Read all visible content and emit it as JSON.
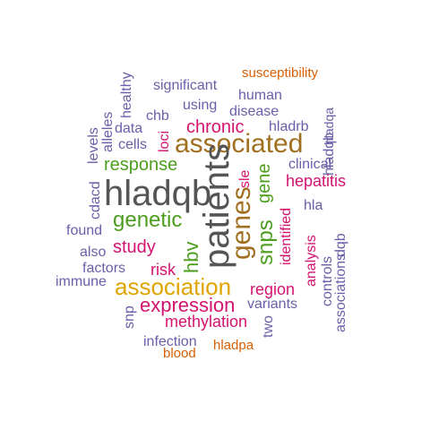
{
  "colors": {
    "purple": "#6a5fa8",
    "pink": "#d4136f",
    "green": "#4d9e1f",
    "gold": "#e0a400",
    "brown": "#a07020",
    "gray": "#555555",
    "orange": "#d95f02"
  },
  "words": [
    {
      "text": "susceptibility",
      "size": 15,
      "color": "orange",
      "vertical": false
    },
    {
      "text": "healthy",
      "size": 16,
      "color": "purple",
      "vertical": true
    },
    {
      "text": "significant",
      "size": 16,
      "color": "purple",
      "vertical": false
    },
    {
      "text": "human",
      "size": 16,
      "color": "purple",
      "vertical": false
    },
    {
      "text": "using",
      "size": 16,
      "color": "purple",
      "vertical": false
    },
    {
      "text": "disease",
      "size": 16,
      "color": "purple",
      "vertical": false
    },
    {
      "text": "alleles",
      "size": 16,
      "color": "purple",
      "vertical": true
    },
    {
      "text": "chb",
      "size": 16,
      "color": "purple",
      "vertical": false
    },
    {
      "text": "hladqa",
      "size": 14,
      "color": "purple",
      "vertical": true
    },
    {
      "text": "data",
      "size": 16,
      "color": "purple",
      "vertical": false
    },
    {
      "text": "chronic",
      "size": 20,
      "color": "pink",
      "vertical": false
    },
    {
      "text": "hladrb",
      "size": 16,
      "color": "purple",
      "vertical": false
    },
    {
      "text": "levels",
      "size": 16,
      "color": "purple",
      "vertical": true
    },
    {
      "text": "loci",
      "size": 16,
      "color": "pink",
      "vertical": true
    },
    {
      "text": "cells",
      "size": 16,
      "color": "purple",
      "vertical": false
    },
    {
      "text": "associated",
      "size": 30,
      "color": "brown",
      "vertical": false
    },
    {
      "text": "hladqb",
      "size": 16,
      "color": "purple",
      "vertical": true
    },
    {
      "text": "response",
      "size": 20,
      "color": "green",
      "vertical": false
    },
    {
      "text": "clinical",
      "size": 16,
      "color": "purple",
      "vertical": false
    },
    {
      "text": "sle",
      "size": 16,
      "color": "pink",
      "vertical": true
    },
    {
      "text": "gene",
      "size": 20,
      "color": "green",
      "vertical": true
    },
    {
      "text": "hepatitis",
      "size": 18,
      "color": "pink",
      "vertical": false
    },
    {
      "text": "hladqb",
      "size": 40,
      "color": "gray",
      "vertical": false
    },
    {
      "text": "patients",
      "size": 40,
      "color": "gray",
      "vertical": true
    },
    {
      "text": "cdacd",
      "size": 16,
      "color": "purple",
      "vertical": true
    },
    {
      "text": "genes",
      "size": 30,
      "color": "brown",
      "vertical": true
    },
    {
      "text": "snps",
      "size": 24,
      "color": "green",
      "vertical": true
    },
    {
      "text": "identified",
      "size": 16,
      "color": "pink",
      "vertical": true
    },
    {
      "text": "hla",
      "size": 16,
      "color": "purple",
      "vertical": false
    },
    {
      "text": "dqb",
      "size": 16,
      "color": "purple",
      "vertical": true
    },
    {
      "text": "genetic",
      "size": 24,
      "color": "green",
      "vertical": false
    },
    {
      "text": "found",
      "size": 16,
      "color": "purple",
      "vertical": false
    },
    {
      "text": "analysis",
      "size": 16,
      "color": "pink",
      "vertical": true
    },
    {
      "text": "hbv",
      "size": 22,
      "color": "green",
      "vertical": true
    },
    {
      "text": "study",
      "size": 20,
      "color": "pink",
      "vertical": false
    },
    {
      "text": "also",
      "size": 16,
      "color": "purple",
      "vertical": false
    },
    {
      "text": "controls",
      "size": 16,
      "color": "purple",
      "vertical": true
    },
    {
      "text": "factors",
      "size": 16,
      "color": "purple",
      "vertical": false
    },
    {
      "text": "risk",
      "size": 18,
      "color": "pink",
      "vertical": false
    },
    {
      "text": "associations",
      "size": 16,
      "color": "purple",
      "vertical": true
    },
    {
      "text": "immune",
      "size": 16,
      "color": "purple",
      "vertical": false
    },
    {
      "text": "association",
      "size": 26,
      "color": "gold",
      "vertical": false
    },
    {
      "text": "region",
      "size": 18,
      "color": "pink",
      "vertical": false
    },
    {
      "text": "snp",
      "size": 16,
      "color": "purple",
      "vertical": true
    },
    {
      "text": "expression",
      "size": 22,
      "color": "pink",
      "vertical": false
    },
    {
      "text": "variants",
      "size": 16,
      "color": "purple",
      "vertical": false
    },
    {
      "text": "two",
      "size": 16,
      "color": "purple",
      "vertical": true
    },
    {
      "text": "methylation",
      "size": 18,
      "color": "pink",
      "vertical": false
    },
    {
      "text": "infection",
      "size": 16,
      "color": "purple",
      "vertical": false
    },
    {
      "text": "hladpa",
      "size": 15,
      "color": "orange",
      "vertical": false
    },
    {
      "text": "blood",
      "size": 15,
      "color": "orange",
      "vertical": false
    }
  ]
}
